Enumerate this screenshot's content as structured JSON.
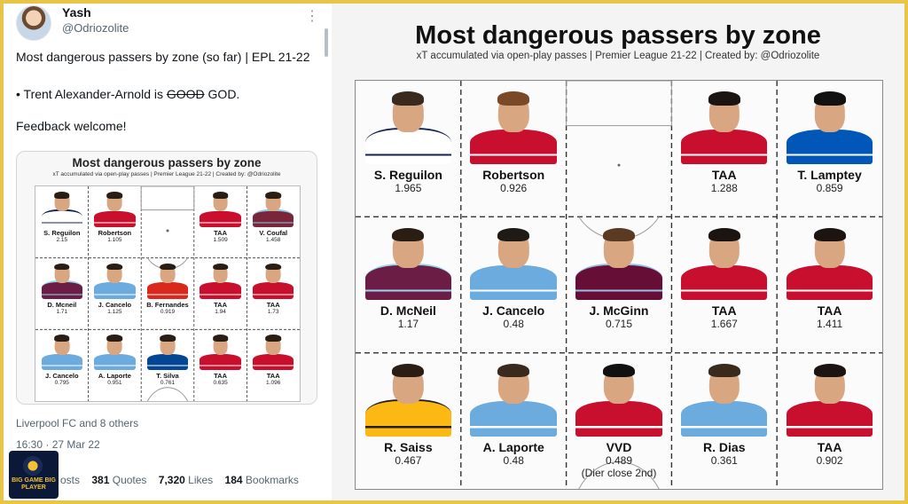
{
  "tweet": {
    "author_name": "Yash",
    "author_handle": "@Odriozolite",
    "more_icon": "more-dots-icon",
    "line1": "Most dangerous passers by zone (so far) | EPL 21-22",
    "line2_prefix": "• Trent Alexander-Arnold is ",
    "line2_strike": "GOOD",
    "line2_suffix": " GOD.",
    "line3": "Feedback welcome!",
    "liked_by": "Liverpool FC and 8 others",
    "timestamp": "16:30 · 27 Mar 22",
    "stats": {
      "reposts_label": "osts",
      "quotes_count": "381",
      "quotes_label": "Quotes",
      "likes_count": "7,320",
      "likes_label": "Likes",
      "bookmarks_count": "184",
      "bookmarks_label": "Bookmarks"
    },
    "card": {
      "title": "Most dangerous passers by zone",
      "subtitle": "xT accumulated via open-play passes | Premier League 21-22 | Created by: @Odriozolite",
      "rows": [
        [
          {
            "name": "S. Reguilon",
            "value": "2.15",
            "kit": "#ffffff",
            "trim": "#13224f"
          },
          {
            "name": "Robertson",
            "value": "1.105",
            "kit": "#c8102e",
            "trim": "#ffffff"
          },
          null,
          {
            "name": "TAA",
            "value": "1.509",
            "kit": "#c8102e",
            "trim": "#ffffff"
          },
          {
            "name": "V. Coufal",
            "value": "1.458",
            "kit": "#7a263a",
            "trim": "#8fc1e3"
          }
        ],
        [
          {
            "name": "D. Mcneil",
            "value": "1.71",
            "kit": "#6c1d45",
            "trim": "#99d6ea"
          },
          {
            "name": "J. Cancelo",
            "value": "1.125",
            "kit": "#6cabdd",
            "trim": "#ffffff"
          },
          {
            "name": "B. Fernandes",
            "value": "0.919",
            "kit": "#da291c",
            "trim": "#ffffff"
          },
          {
            "name": "TAA",
            "value": "1.94",
            "kit": "#c8102e",
            "trim": "#ffffff"
          },
          {
            "name": "TAA",
            "value": "1.73",
            "kit": "#c8102e",
            "trim": "#ffffff"
          }
        ],
        [
          {
            "name": "J. Cancelo",
            "value": "0.795",
            "kit": "#6cabdd",
            "trim": "#ffffff"
          },
          {
            "name": "A. Laporte",
            "value": "0.951",
            "kit": "#6cabdd",
            "trim": "#ffffff"
          },
          {
            "name": "T. Silva",
            "value": "0.761",
            "kit": "#034694",
            "trim": "#ffffff"
          },
          {
            "name": "TAA",
            "value": "0.635",
            "kit": "#c8102e",
            "trim": "#ffffff"
          },
          {
            "name": "TAA",
            "value": "1.096",
            "kit": "#c8102e",
            "trim": "#ffffff"
          }
        ]
      ]
    },
    "badge_text": "BIG GAME BIG PLAYER"
  },
  "graphic": {
    "title": "Most dangerous passers by zone",
    "subtitle": "xT accumulated via open-play passes  |  Premier League 21-22  |  Created by: @Odriozolite",
    "rows": [
      [
        {
          "name": "S. Reguilon",
          "value": "1.965",
          "kit": "#ffffff",
          "trim": "#13224f",
          "hair": "#3a2a1e"
        },
        {
          "name": "Robertson",
          "value": "0.926",
          "kit": "#c8102e",
          "trim": "#ffffff",
          "hair": "#7a4a28"
        },
        null,
        {
          "name": "TAA",
          "value": "1.288",
          "kit": "#c8102e",
          "trim": "#ffffff",
          "hair": "#1b1410"
        },
        {
          "name": "T. Lamptey",
          "value": "0.859",
          "kit": "#0057b8",
          "trim": "#ffffff",
          "hair": "#111111"
        }
      ],
      [
        {
          "name": "D. McNeil",
          "value": "1.17",
          "kit": "#6c1d45",
          "trim": "#99d6ea",
          "hair": "#2a1d14"
        },
        {
          "name": "J. Cancelo",
          "value": "0.48",
          "kit": "#6cabdd",
          "trim": "#ffffff",
          "hair": "#1e1a16"
        },
        {
          "name": "J. McGinn",
          "value": "0.715",
          "kit": "#670e36",
          "trim": "#95bfe5",
          "hair": "#5a3a22"
        },
        {
          "name": "TAA",
          "value": "1.667",
          "kit": "#c8102e",
          "trim": "#ffffff",
          "hair": "#1b1410"
        },
        {
          "name": "TAA",
          "value": "1.411",
          "kit": "#c8102e",
          "trim": "#ffffff",
          "hair": "#1b1410"
        }
      ],
      [
        {
          "name": "R. Saiss",
          "value": "0.467",
          "kit": "#fdb913",
          "trim": "#231f20",
          "hair": "#2a1d14"
        },
        {
          "name": "A. Laporte",
          "value": "0.48",
          "kit": "#6cabdd",
          "trim": "#ffffff",
          "hair": "#3a2a1e"
        },
        {
          "name": "VVD",
          "value": "0.489",
          "note": "(Dier close 2nd)",
          "kit": "#c8102e",
          "trim": "#ffffff",
          "hair": "#111111"
        },
        {
          "name": "R. Dias",
          "value": "0.361",
          "kit": "#6cabdd",
          "trim": "#ffffff",
          "hair": "#3a2a1e"
        },
        {
          "name": "TAA",
          "value": "0.902",
          "kit": "#c8102e",
          "trim": "#ffffff",
          "hair": "#1b1410"
        }
      ]
    ]
  },
  "colors": {
    "frame_border": "#e8c547",
    "text_primary": "#0f1419",
    "text_secondary": "#536471"
  }
}
